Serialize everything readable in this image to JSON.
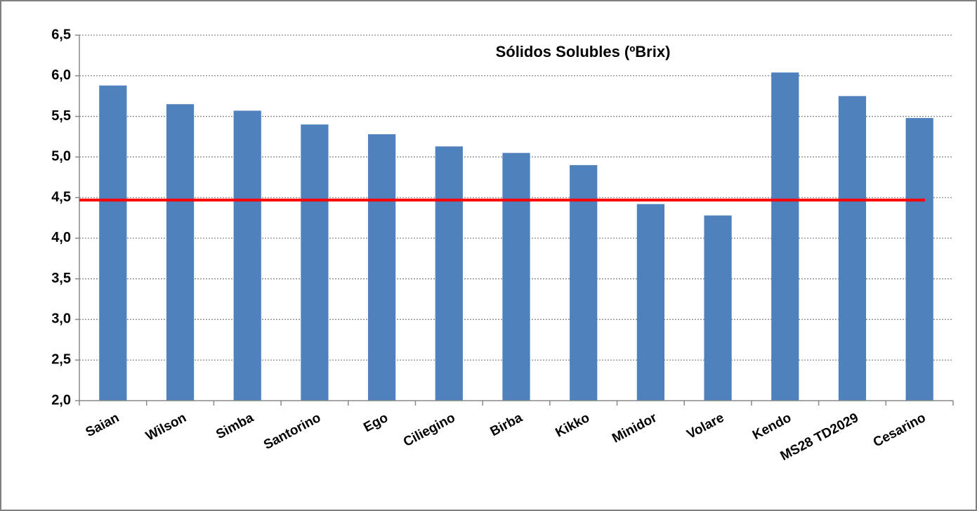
{
  "chart_data": {
    "type": "bar",
    "title": "Sólidos Solubles (ºBrix)",
    "categories": [
      "Saian",
      "Wilson",
      "Simba",
      "Santorino",
      "Ego",
      "Ciliegino",
      "Birba",
      "Kikko",
      "Minidor",
      "Volare",
      "Kendo",
      "MS28 TD2029",
      "Cesarino"
    ],
    "values": [
      5.88,
      5.65,
      5.57,
      5.4,
      5.28,
      5.13,
      5.05,
      4.9,
      4.42,
      4.28,
      6.04,
      5.75,
      5.48
    ],
    "color": "#4f81bd",
    "ylim": [
      2.0,
      6.5
    ],
    "yticks": [
      {
        "value": 2.0,
        "label": "2,0"
      },
      {
        "value": 2.5,
        "label": "2,5"
      },
      {
        "value": 3.0,
        "label": "3,0"
      },
      {
        "value": 3.5,
        "label": "3,5"
      },
      {
        "value": 4.0,
        "label": "4,0"
      },
      {
        "value": 4.5,
        "label": "4,5"
      },
      {
        "value": 5.0,
        "label": "5,0"
      },
      {
        "value": 5.5,
        "label": "5,5"
      },
      {
        "value": 6.0,
        "label": "6,0"
      },
      {
        "value": 6.5,
        "label": "6,5"
      }
    ],
    "grid": true,
    "reference_line": {
      "value": 4.47,
      "color": "#ff0000"
    }
  }
}
